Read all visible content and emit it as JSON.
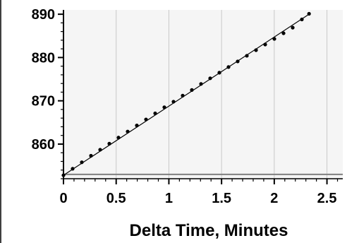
{
  "chart_data": {
    "type": "scatter",
    "title": "",
    "xlabel": "Delta Time, Minutes",
    "ylabel": "",
    "xlim": [
      0,
      2.65
    ],
    "ylim": [
      852,
      891
    ],
    "x_ticks": [
      {
        "value": 0,
        "label": "0"
      },
      {
        "value": 0.5,
        "label": "0.5"
      },
      {
        "value": 1,
        "label": "1"
      },
      {
        "value": 1.5,
        "label": "1.5"
      },
      {
        "value": 2,
        "label": "2"
      },
      {
        "value": 2.5,
        "label": "2.5"
      }
    ],
    "y_ticks": [
      {
        "value": 860,
        "label": "860"
      },
      {
        "value": 870,
        "label": "870"
      },
      {
        "value": 880,
        "label": "880"
      },
      {
        "value": 890,
        "label": "890"
      }
    ],
    "x_minor_step": 0.1,
    "y_minor_step": 2,
    "grid": {
      "x": true,
      "y": false
    },
    "colors": {
      "plot_background": "#f5f5f5",
      "grid": "#c8c8c8",
      "axis": "#000000",
      "points": "#000000",
      "baseline": "#808080",
      "fit_line": "#000000"
    },
    "baseline_value": 853,
    "fit_line": {
      "x": [
        0,
        2.33
      ],
      "y": [
        852.8,
        890
      ]
    },
    "series": [
      {
        "x": [
          0,
          0.087,
          0.174,
          0.261,
          0.348,
          0.435,
          0.522,
          0.609,
          0.696,
          0.783,
          0.87,
          0.957,
          1.044,
          1.131,
          1.218,
          1.305,
          1.392,
          1.479,
          1.566,
          1.653,
          1.74,
          1.827,
          1.914,
          2.001,
          2.088,
          2.175,
          2.262,
          2.33
        ],
        "y": [
          852.8,
          854.3,
          855.8,
          857.3,
          858.7,
          860.1,
          861.5,
          862.9,
          864.3,
          865.7,
          867.1,
          868.5,
          869.8,
          871.2,
          872.5,
          873.9,
          875.2,
          876.5,
          877.8,
          879.1,
          880.4,
          881.7,
          883,
          884.3,
          885.6,
          886.9,
          888.8,
          890.1
        ]
      }
    ]
  }
}
